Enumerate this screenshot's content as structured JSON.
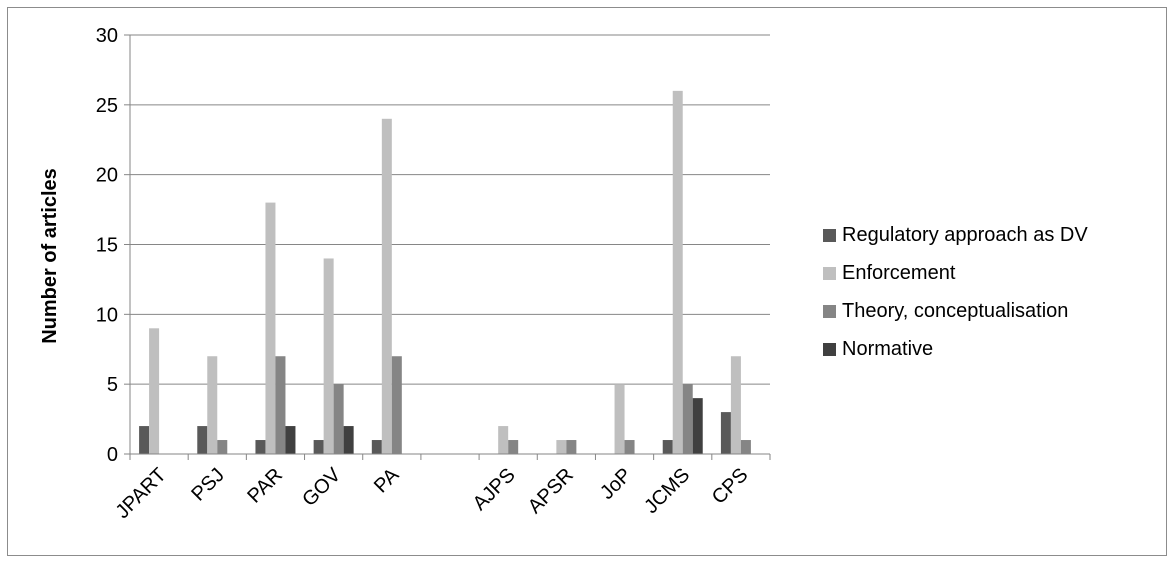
{
  "chart_data": {
    "type": "bar",
    "title": "",
    "xlabel": "",
    "ylabel": "Number of articles",
    "ylim": [
      0,
      30
    ],
    "yticks": [
      0,
      5,
      10,
      15,
      20,
      25,
      30
    ],
    "grid": true,
    "legend_position": "right",
    "categories": [
      "JPART",
      "PSJ",
      "PAR",
      "GOV",
      "PA",
      "",
      "AJPS",
      "APSR",
      "JoP",
      "JCMS",
      "CPS"
    ],
    "series": [
      {
        "name": "Regulatory approach as DV",
        "color": "#595959",
        "values": [
          2,
          2,
          1,
          1,
          1,
          null,
          null,
          null,
          null,
          1,
          3
        ]
      },
      {
        "name": "Enforcement",
        "color": "#bfbfbf",
        "values": [
          9,
          7,
          18,
          14,
          24,
          null,
          2,
          1,
          5,
          26,
          7
        ]
      },
      {
        "name": "Theory, conceptualisation",
        "color": "#858585",
        "values": [
          null,
          1,
          7,
          5,
          7,
          null,
          1,
          1,
          1,
          5,
          1
        ]
      },
      {
        "name": "Normative",
        "color": "#404040",
        "values": [
          null,
          null,
          2,
          2,
          null,
          null,
          null,
          null,
          null,
          4,
          null
        ]
      }
    ]
  }
}
